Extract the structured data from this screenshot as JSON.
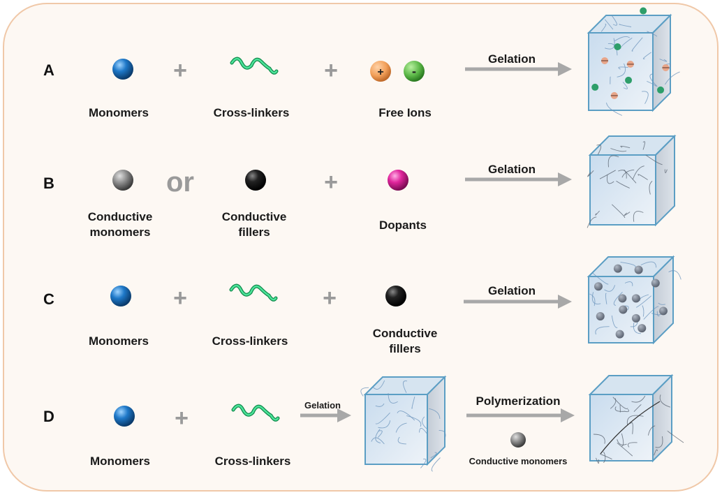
{
  "colors": {
    "background": "#fdf8f3",
    "border": "#f0c8a8",
    "arrow": "#a8a8a8",
    "cube_edge": "#5b9ec4",
    "cube_fill": "#dbe8f3",
    "monomer": "#1e78c8",
    "crosslinker": "#2ec77a",
    "positive_ion": "#f2a05a",
    "negative_ion": "#5cb848",
    "conductive_monomer": "#8a8a8a",
    "conductive_filler": "#222222",
    "dopant": "#e0259c"
  },
  "rows": {
    "A": {
      "letter": "A",
      "monomers": "Monomers",
      "crosslinkers": "Cross-linkers",
      "free_ions": "Free Ions",
      "pos": "+",
      "neg": "-",
      "plus": "+",
      "arrow": "Gelation"
    },
    "B": {
      "letter": "B",
      "cm1": "Conductive",
      "cm2": "monomers",
      "or": "or",
      "cf1": "Conductive",
      "cf2": "fillers",
      "plus": "+",
      "dopants": "Dopants",
      "arrow": "Gelation"
    },
    "C": {
      "letter": "C",
      "monomers": "Monomers",
      "crosslinkers": "Cross-linkers",
      "cf1": "Conductive",
      "cf2": "fillers",
      "plus": "+",
      "arrow": "Gelation"
    },
    "D": {
      "letter": "D",
      "monomers": "Monomers",
      "crosslinkers": "Cross-linkers",
      "plus": "+",
      "arrow1": "Gelation",
      "arrow2": "Polymerization",
      "cm": "Conductive monomers"
    }
  }
}
